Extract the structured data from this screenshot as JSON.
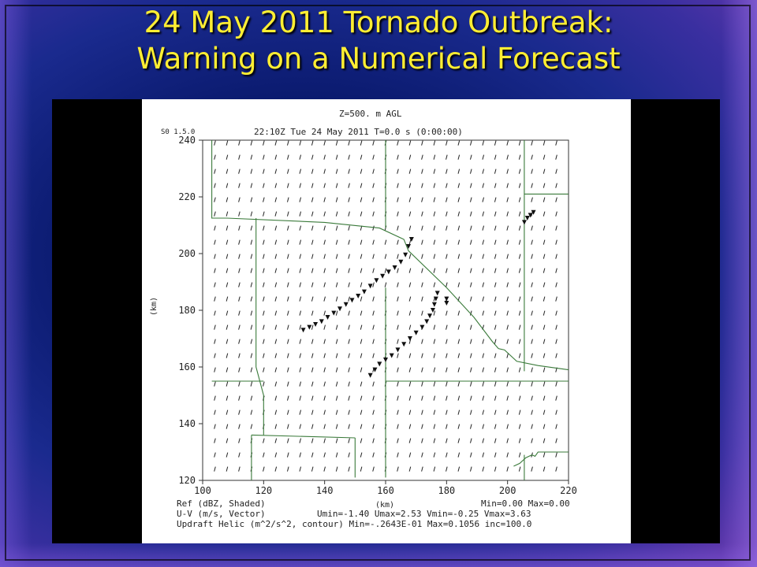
{
  "slide": {
    "title_line1": "24 May 2011 Tornado Outbreak:",
    "title_line2": "Warning on a Numerical Forecast"
  },
  "chart_data": {
    "type": "scatter",
    "header_line1": "Z=500. m AGL",
    "header_line2": "22:10Z Tue 24 May 2011    T=0.0 s (0:00:00)",
    "corner_label": "S0 1.5.0",
    "xlabel": "(km)",
    "ylabel": "(km)",
    "xlim": [
      100,
      220
    ],
    "ylim": [
      120,
      240
    ],
    "x_ticks": [
      "100",
      "120",
      "140",
      "160",
      "180",
      "200",
      "220"
    ],
    "y_ticks": [
      "120",
      "140",
      "160",
      "180",
      "200",
      "220",
      "240"
    ],
    "grid": false,
    "footer": {
      "line1_left": "Ref (dBZ, Shaded)",
      "line1_right": "Min=0.00  Max=0.00",
      "line2_left": "U-V (m/s, Vector)",
      "line2_right": "Umin=-1.40 Umax=2.53 Vmin=-0.25 Vmax=3.63",
      "line3": "Updraft Helic (m^2/s^2, contour) Min=-.2643E-01 Max=0.1056 inc=100.0"
    },
    "series": [
      {
        "marker": "inverted-triangle",
        "points": [
          [
            133,
            173
          ],
          [
            135,
            174
          ],
          [
            137,
            175
          ],
          [
            139,
            176
          ],
          [
            141,
            177.5
          ],
          [
            143,
            179
          ],
          [
            145,
            180.5
          ],
          [
            147,
            182
          ],
          [
            149,
            183.5
          ],
          [
            151,
            185
          ],
          [
            153,
            186.5
          ],
          [
            155,
            188.5
          ],
          [
            157,
            190.5
          ],
          [
            159,
            192
          ],
          [
            161,
            193.5
          ],
          [
            163,
            195
          ],
          [
            165,
            197
          ],
          [
            166.5,
            199.5
          ],
          [
            167.5,
            202.5
          ],
          [
            168.5,
            205
          ]
        ]
      },
      {
        "marker": "inverted-triangle",
        "points": [
          [
            155,
            157
          ],
          [
            156.5,
            159
          ],
          [
            158,
            161
          ],
          [
            160,
            162.5
          ],
          [
            162,
            164
          ],
          [
            164,
            166
          ],
          [
            166,
            168
          ],
          [
            168,
            170
          ],
          [
            170,
            172
          ],
          [
            172,
            174
          ],
          [
            173.5,
            176
          ],
          [
            174.5,
            178
          ],
          [
            175.5,
            180
          ],
          [
            176,
            182
          ],
          [
            176.5,
            184
          ],
          [
            177,
            186
          ]
        ]
      },
      {
        "marker": "inverted-triangle",
        "points": [
          [
            180,
            182.5
          ],
          [
            180,
            184
          ],
          [
            205.5,
            211
          ],
          [
            206.5,
            212.5
          ],
          [
            207.5,
            213.5
          ],
          [
            208.5,
            214.5
          ]
        ]
      }
    ],
    "boundaries": [
      [
        [
          103,
          240
        ],
        [
          103,
          212.5
        ],
        [
          108,
          212.5
        ],
        [
          140,
          211
        ],
        [
          158,
          209
        ],
        [
          166,
          205
        ],
        [
          167.5,
          201
        ],
        [
          180,
          188
        ],
        [
          189,
          177.5
        ],
        [
          195,
          169
        ],
        [
          197,
          166.5
        ],
        [
          199,
          166
        ],
        [
          203,
          162
        ],
        [
          210,
          160.5
        ],
        [
          220,
          159
        ]
      ],
      [
        [
          117.5,
          212.5
        ],
        [
          117.5,
          160
        ],
        [
          120,
          150
        ],
        [
          120,
          140
        ],
        [
          120,
          136
        ]
      ],
      [
        [
          103,
          155
        ],
        [
          120,
          155
        ]
      ],
      [
        [
          160,
          240
        ],
        [
          160,
          209
        ]
      ],
      [
        [
          160,
          155
        ],
        [
          220,
          155
        ]
      ],
      [
        [
          160,
          188
        ],
        [
          160,
          121
        ]
      ],
      [
        [
          205.5,
          240
        ],
        [
          205.5,
          158.5
        ]
      ],
      [
        [
          205.5,
          221
        ],
        [
          220,
          221
        ]
      ],
      [
        [
          116,
          136
        ],
        [
          116,
          120
        ]
      ],
      [
        [
          116,
          136
        ],
        [
          150,
          135
        ]
      ],
      [
        [
          150,
          135
        ],
        [
          150,
          121
        ]
      ],
      [
        [
          202,
          125
        ],
        [
          204,
          126
        ],
        [
          206,
          128
        ],
        [
          208,
          129
        ],
        [
          209,
          128.5
        ],
        [
          210,
          130
        ],
        [
          220,
          130
        ]
      ],
      [
        [
          205.5,
          129
        ],
        [
          205.5,
          120
        ]
      ]
    ],
    "vector_field": {
      "note": "small arrows across domain, mean wind from south-southwest"
    }
  }
}
